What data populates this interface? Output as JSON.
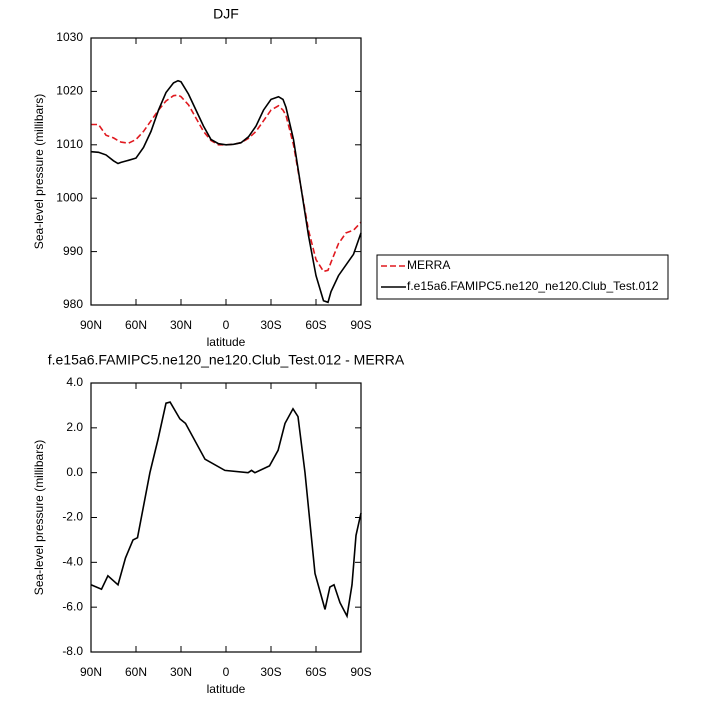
{
  "chart_data": [
    {
      "type": "line",
      "title": "DJF",
      "xlabel": "latitude",
      "ylabel": "Sea-level pressure (millibars)",
      "xlim": [
        90,
        -90
      ],
      "ylim": [
        980,
        1030
      ],
      "xticks": [
        {
          "value": 90,
          "label": "90N"
        },
        {
          "value": 60,
          "label": "60N"
        },
        {
          "value": 30,
          "label": "30N"
        },
        0,
        {
          "value": -30,
          "label": "30S"
        },
        {
          "value": -60,
          "label": "60S"
        },
        {
          "value": -90,
          "label": "90S"
        }
      ],
      "yticks": [
        980,
        990,
        1000,
        1010,
        1020,
        1030
      ],
      "legend": "right",
      "x": [
        90,
        85,
        80,
        75,
        72,
        70,
        65,
        60,
        55,
        50,
        45,
        40,
        35,
        32,
        30,
        25,
        20,
        15,
        10,
        5,
        0,
        -5,
        -10,
        -15,
        -20,
        -25,
        -30,
        -35,
        -38,
        -40,
        -45,
        -50,
        -55,
        -60,
        -65,
        -68,
        -70,
        -75,
        -80,
        -85,
        -90
      ],
      "series": [
        {
          "name": "MERRA",
          "color": "#e0191f",
          "dashed": true,
          "values": [
            1013.8,
            1013.8,
            1011.8,
            1011.3,
            1010.8,
            1010.5,
            1010.3,
            1011.0,
            1012.5,
            1014.5,
            1016.5,
            1018.2,
            1019.2,
            1019.3,
            1019.0,
            1017.5,
            1015.0,
            1012.5,
            1010.8,
            1010.0,
            1010.0,
            1010.1,
            1010.4,
            1011.2,
            1012.5,
            1014.5,
            1016.5,
            1017.3,
            1016.5,
            1015.5,
            1010.0,
            1002.0,
            994.0,
            988.5,
            986.3,
            986.5,
            988.0,
            991.5,
            993.5,
            994.0,
            995.5
          ]
        },
        {
          "name": "f.e15a6.FAMIPC5.ne120_ne120.Club_Test.012",
          "color": "#000000",
          "dashed": false,
          "values": [
            1008.7,
            1008.6,
            1008.1,
            1007.0,
            1006.5,
            1006.7,
            1007.1,
            1007.5,
            1009.5,
            1012.5,
            1016.5,
            1019.8,
            1021.6,
            1022.0,
            1021.8,
            1019.5,
            1016.5,
            1013.5,
            1011.0,
            1010.2,
            1010.0,
            1010.1,
            1010.4,
            1011.5,
            1013.5,
            1016.5,
            1018.5,
            1019.0,
            1018.5,
            1017.0,
            1011.0,
            1002.0,
            993.0,
            985.5,
            980.8,
            980.5,
            982.5,
            985.5,
            987.5,
            989.5,
            993.5
          ]
        }
      ]
    },
    {
      "type": "line",
      "title": "f.e15a6.FAMIPC5.ne120_ne120.Club_Test.012 - MERRA",
      "xlabel": "latitude",
      "ylabel": "Sea-level pressure (millibars)",
      "xlim": [
        90,
        -90
      ],
      "ylim": [
        -8,
        4
      ],
      "xticks": [
        {
          "value": 90,
          "label": "90N"
        },
        {
          "value": 60,
          "label": "60N"
        },
        {
          "value": 30,
          "label": "30N"
        },
        0,
        {
          "value": -30,
          "label": "30S"
        },
        {
          "value": -60,
          "label": "60S"
        },
        {
          "value": -90,
          "label": "90S"
        }
      ],
      "yticks": [
        {
          "value": -8,
          "label": "-8.0"
        },
        {
          "value": -6,
          "label": "-6.0"
        },
        {
          "value": -4,
          "label": "-4.0"
        },
        {
          "value": -2,
          "label": "-2.0"
        },
        {
          "value": 0,
          "label": "0.0"
        },
        {
          "value": 2,
          "label": "2.0"
        },
        {
          "value": 4,
          "label": "4.0"
        }
      ],
      "x": [
        90,
        83,
        78.7,
        72,
        67,
        62,
        59,
        50.7,
        45.3,
        40,
        37.3,
        30.7,
        27,
        14,
        0.7,
        -14.7,
        -17,
        -19.3,
        -29,
        -34.7,
        -39.3,
        -44.7,
        -48,
        -52.7,
        -59.3,
        -66,
        -69.3,
        -72,
        -76,
        -80.7,
        -84,
        -86.7,
        -90
      ],
      "series": [
        {
          "color": "#000000",
          "dashed": false,
          "values": [
            -5.0,
            -5.2,
            -4.6,
            -5.0,
            -3.8,
            -3.0,
            -2.9,
            0.0,
            1.5,
            3.1,
            3.15,
            2.4,
            2.2,
            0.6,
            0.1,
            0.0,
            0.1,
            0.0,
            0.3,
            1.0,
            2.2,
            2.85,
            2.5,
            0.0,
            -4.5,
            -6.1,
            -5.1,
            -5.0,
            -5.8,
            -6.4,
            -5.0,
            -2.8,
            -1.8
          ]
        }
      ]
    }
  ]
}
